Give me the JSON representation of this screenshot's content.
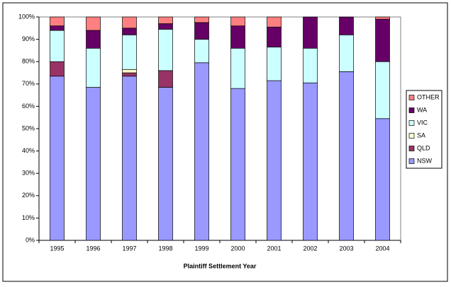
{
  "chart_data": {
    "type": "stacked-bar",
    "x_label": "Plaintiff Settlement Year",
    "categories": [
      "1995",
      "1996",
      "1997",
      "1998",
      "1999",
      "2000",
      "2001",
      "2002",
      "2003",
      "2004"
    ],
    "series": [
      {
        "name": "NSW",
        "color": "#9999ff",
        "values": [
          73.5,
          68.5,
          73.5,
          68.5,
          79.5,
          68,
          71.5,
          70.5,
          75.5,
          54.5
        ]
      },
      {
        "name": "QLD",
        "color": "#993366",
        "values": [
          6.5,
          0,
          1.5,
          7.5,
          0,
          0,
          0,
          0,
          0,
          0
        ]
      },
      {
        "name": "SA",
        "color": "#ffffcc",
        "values": [
          0,
          0,
          1.5,
          0,
          0,
          0,
          0,
          0,
          0,
          0
        ]
      },
      {
        "name": "VIC",
        "color": "#ccffff",
        "values": [
          14,
          17.5,
          15.5,
          18.5,
          10.5,
          18,
          15,
          15.5,
          16.5,
          25.5
        ]
      },
      {
        "name": "WA",
        "color": "#660066",
        "values": [
          2,
          8,
          3,
          2.5,
          7.5,
          10,
          9,
          14,
          8,
          19
        ]
      },
      {
        "name": "OTHER",
        "color": "#ff8080",
        "values": [
          4,
          6,
          5,
          3,
          2.5,
          4,
          4.5,
          0,
          0,
          1
        ]
      }
    ],
    "ylim": [
      0,
      100
    ],
    "yticks": [
      {
        "value": 0,
        "label": "0%"
      },
      {
        "value": 10,
        "label": "10%"
      },
      {
        "value": 20,
        "label": "20%"
      },
      {
        "value": 30,
        "label": "30%"
      },
      {
        "value": 40,
        "label": "40%"
      },
      {
        "value": 50,
        "label": "50%"
      },
      {
        "value": 60,
        "label": "60%"
      },
      {
        "value": 70,
        "label": "70%"
      },
      {
        "value": 80,
        "label": "80%"
      },
      {
        "value": 90,
        "label": "90%"
      },
      {
        "value": 100,
        "label": "100%"
      }
    ],
    "legend": "right"
  }
}
